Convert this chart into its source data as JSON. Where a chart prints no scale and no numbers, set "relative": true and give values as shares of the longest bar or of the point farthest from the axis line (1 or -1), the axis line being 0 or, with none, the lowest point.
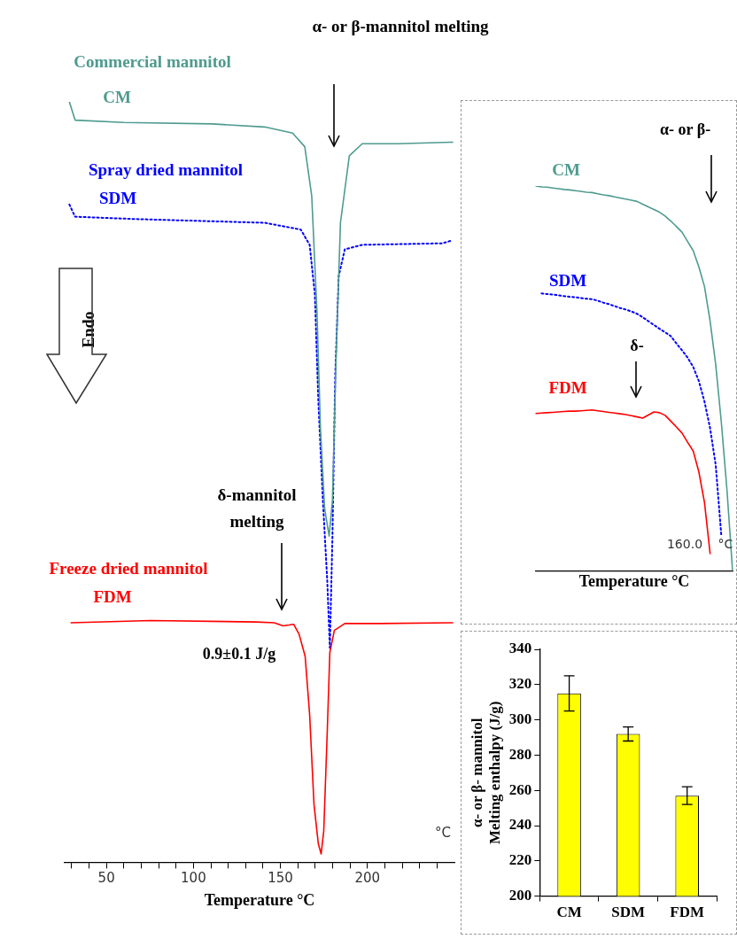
{
  "chart_data": [
    {
      "type": "line",
      "relative": true,
      "xlabel": "Temperature °C",
      "xlim": [
        26,
        250
      ],
      "xticks": [
        {
          "value": 30,
          "label": null
        },
        {
          "value": 40,
          "label": null
        },
        50,
        {
          "value": 60,
          "label": null
        },
        {
          "value": 70,
          "label": null
        },
        {
          "value": 80,
          "label": null
        },
        {
          "value": 90,
          "label": null
        },
        100,
        {
          "value": 110,
          "label": null
        },
        {
          "value": 120,
          "label": null
        },
        {
          "value": 130,
          "label": null
        },
        {
          "value": 140,
          "label": null
        },
        150,
        {
          "value": 160,
          "label": null
        },
        {
          "value": 170,
          "label": null
        },
        {
          "value": 180,
          "label": null
        },
        {
          "value": 190,
          "label": null
        },
        200,
        {
          "value": 210,
          "label": null
        },
        {
          "value": 220,
          "label": null
        },
        {
          "value": 230,
          "label": null
        },
        {
          "value": 240,
          "label": null
        }
      ],
      "legend": false,
      "grid": false,
      "series": [
        {
          "name": "CM",
          "color": "#4e9b8f",
          "x": [
            28.7,
            32,
            60,
            111,
            141,
            157,
            164,
            168,
            171,
            173,
            175.4,
            178,
            179.9,
            182,
            184.5,
            189.6,
            197,
            217.5,
            249
          ],
          "values": [
            1.0,
            0.976,
            0.973,
            0.971,
            0.967,
            0.959,
            0.941,
            0.876,
            0.724,
            0.571,
            0.465,
            0.429,
            0.476,
            0.665,
            0.841,
            0.929,
            0.945,
            0.945,
            0.947
          ]
        },
        {
          "name": "SDM",
          "color": "#0000ff",
          "line_style": "dotted",
          "x": [
            28.7,
            32,
            65,
            141,
            161.7,
            166.8,
            169.8,
            171.8,
            174.4,
            176.9,
            178.4,
            179.9,
            181.5,
            183.5,
            187,
            197,
            243,
            249
          ],
          "values": [
            0.865,
            0.849,
            0.846,
            0.841,
            0.832,
            0.812,
            0.747,
            0.606,
            0.476,
            0.371,
            0.282,
            0.429,
            0.641,
            0.771,
            0.806,
            0.812,
            0.814,
            0.818
          ]
        },
        {
          "name": "FDM",
          "color": "#ff0000",
          "x": [
            29.7,
            75.4,
            136,
            146.4,
            151.5,
            155,
            157.6,
            160.7,
            164.2,
            166.8,
            169.3,
            171.8,
            173.4,
            174.9,
            176.9,
            178.4,
            181,
            187,
            207,
            249
          ],
          "values": [
            0.315,
            0.318,
            0.316,
            0.315,
            0.311,
            0.312,
            0.313,
            0.3,
            0.271,
            0.194,
            0.076,
            0.024,
            0.011,
            0.041,
            0.171,
            0.276,
            0.305,
            0.314,
            0.314,
            0.315
          ]
        }
      ],
      "annotations": [
        "α- or β-mannitol melting",
        "Commercial mannitol",
        "Spray dried mannitol",
        "Freeze dried mannitol",
        "δ-mannitol\nmelting",
        "0.9±0.1 J/g",
        "Endo",
        "°C"
      ]
    },
    {
      "type": "line",
      "relative": true,
      "xlabel": "Temperature °C",
      "tick_labels": false,
      "legend": false,
      "grid": false,
      "categories": [
        null,
        null,
        null,
        null,
        null,
        null,
        null,
        null,
        null,
        null,
        null,
        null,
        null,
        null,
        null,
        null,
        null,
        null,
        null,
        null,
        null,
        null,
        null,
        null,
        null,
        null,
        null,
        null,
        null,
        null,
        null,
        null,
        null,
        null,
        null,
        null
      ],
      "series": [
        {
          "name": "CM",
          "color": "#4e9b8f",
          "values": [
            1.0,
            0.998,
            0.997,
            0.995,
            0.993,
            0.991,
            0.99,
            0.988,
            0.986,
            0.984,
            0.983,
            0.98,
            0.977,
            0.975,
            0.972,
            0.969,
            0.966,
            0.963,
            0.96,
            0.953,
            0.946,
            0.939,
            0.932,
            0.922,
            0.909,
            0.895,
            0.88,
            0.856,
            0.832,
            0.79,
            0.739,
            0.649,
            0.536,
            0.386,
            0.211,
            0.0
          ]
        },
        {
          "name": "SDM",
          "color": "#0000ff",
          "line_style": "dotted",
          "values": [
            null,
            0.721,
            0.719,
            0.718,
            0.716,
            0.714,
            0.712,
            0.711,
            0.709,
            0.707,
            0.706,
            0.702,
            0.697,
            0.693,
            0.688,
            0.683,
            0.679,
            0.674,
            0.668,
            0.659,
            0.649,
            0.639,
            0.629,
            0.62,
            0.61,
            0.591,
            0.573,
            0.554,
            0.53,
            0.493,
            0.44,
            0.371,
            0.275,
            0.091,
            null,
            null
          ]
        },
        {
          "name": "FDM",
          "color": "#ff0000",
          "values": [
            0.409,
            0.41,
            0.411,
            0.412,
            0.413,
            0.414,
            0.415,
            0.415,
            0.416,
            0.417,
            0.418,
            0.416,
            0.414,
            0.412,
            0.41,
            0.408,
            0.406,
            0.403,
            0.4,
            0.397,
            0.405,
            0.413,
            0.411,
            0.404,
            0.389,
            0.374,
            0.358,
            0.334,
            0.311,
            0.257,
            0.178,
            0.045,
            null,
            null,
            null,
            null
          ]
        }
      ],
      "annotations": [
        "α- or β-",
        "δ-",
        "160.0",
        "°C"
      ]
    },
    {
      "type": "bar",
      "ylabel": "α- or β- mannitol\nMelting enthalpy (J/g)",
      "categories": [
        "CM",
        "SDM",
        "FDM"
      ],
      "values": [
        315,
        292,
        257
      ],
      "errors": [
        10,
        4,
        5
      ],
      "color": "#ffff00",
      "ylim": [
        200,
        340
      ],
      "yticks": [
        200,
        220,
        240,
        260,
        280,
        300,
        320,
        340
      ],
      "legend": false,
      "grid": false
    }
  ]
}
